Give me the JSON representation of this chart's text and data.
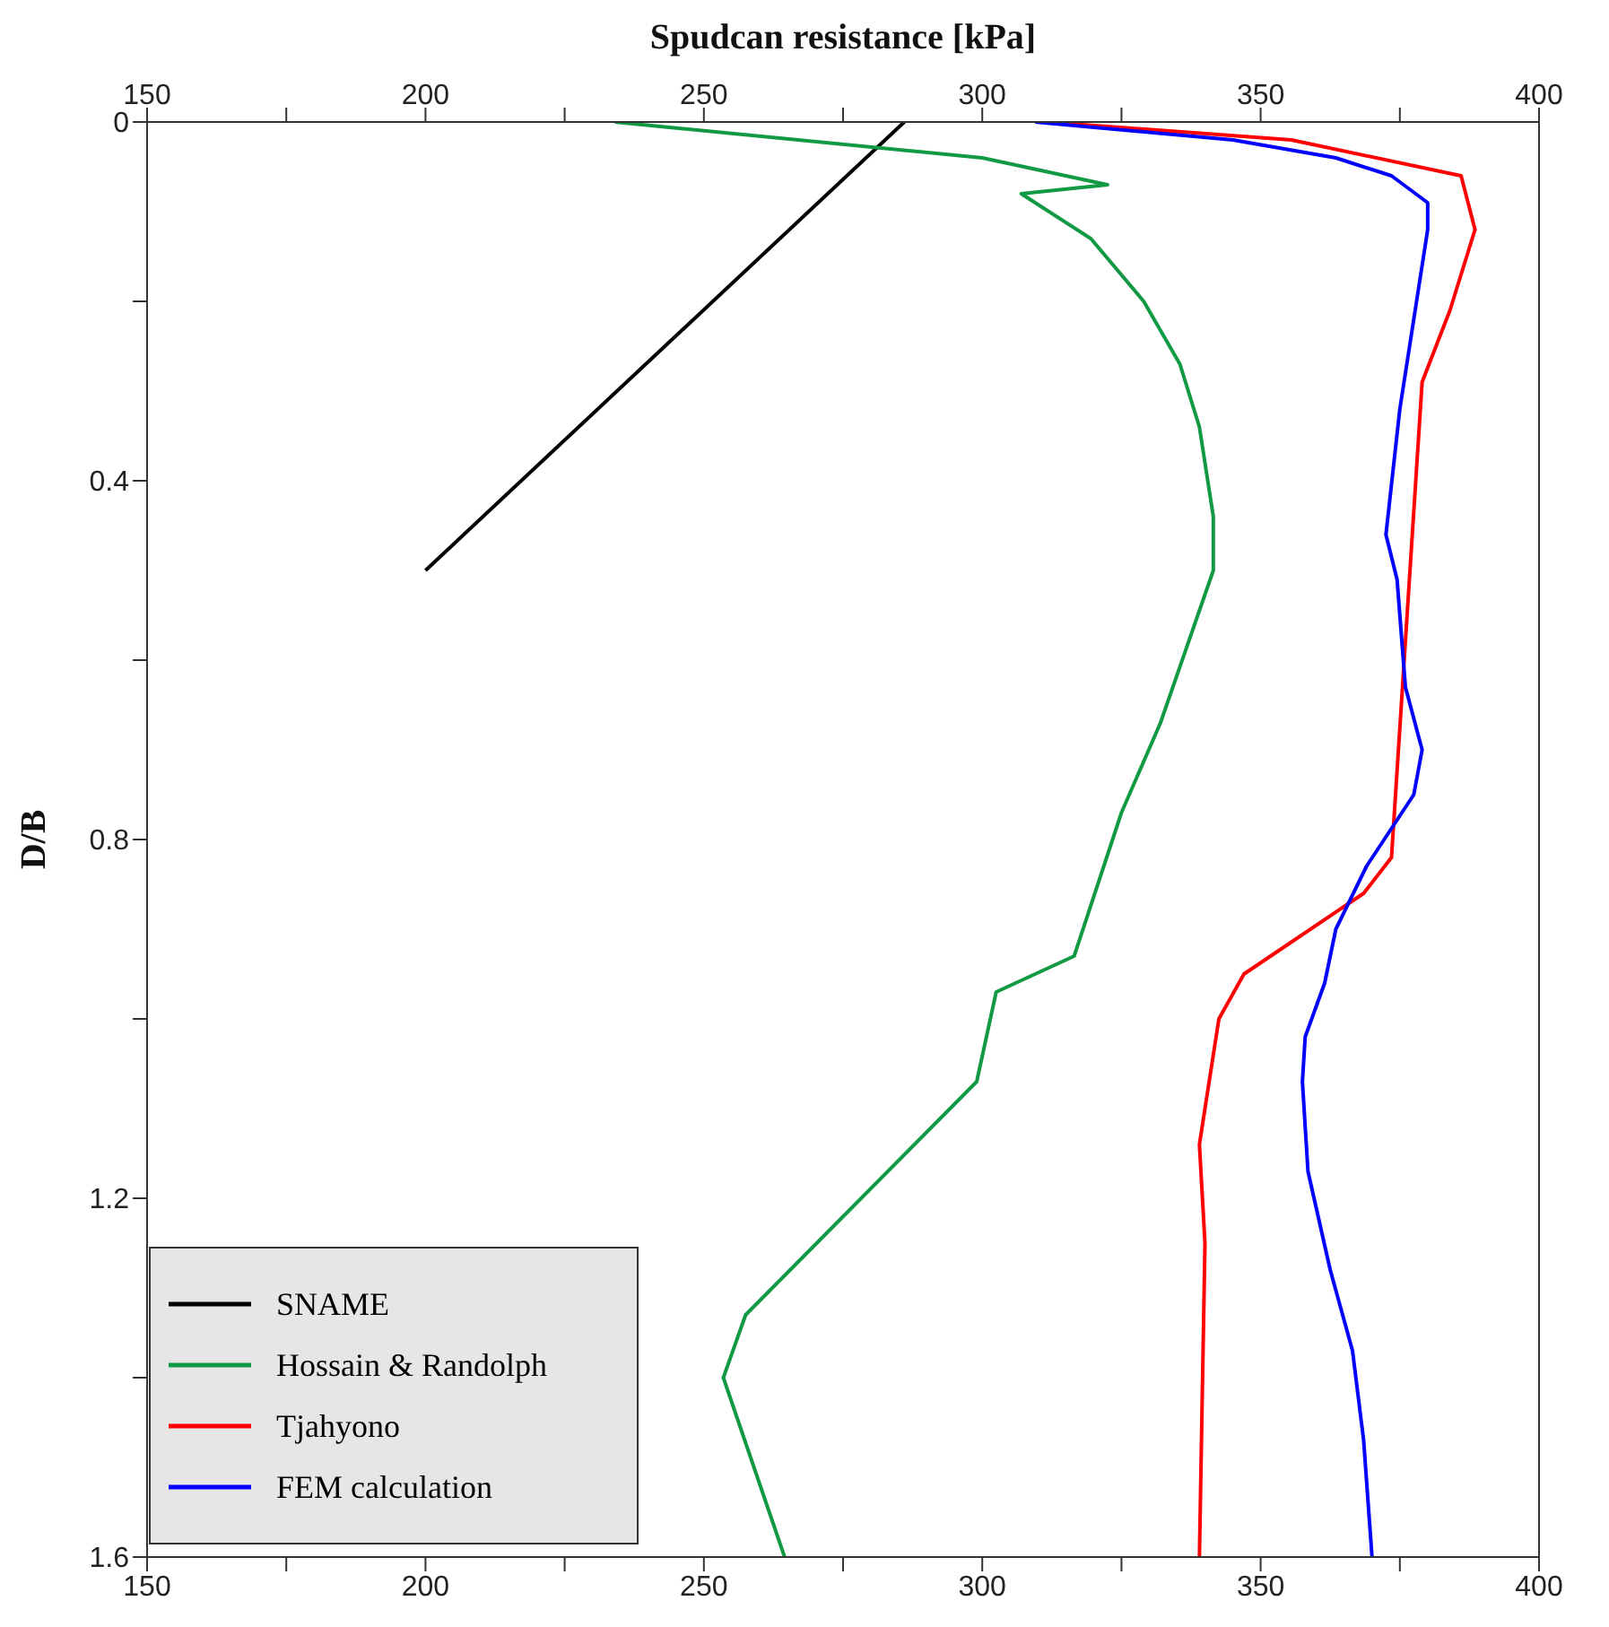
{
  "chart_data": {
    "type": "line",
    "x2label": "Spudcan resistance [kPa]",
    "ylabel": "D/B",
    "xlim": [
      150,
      400
    ],
    "xticks": [
      150,
      {
        "value": 175,
        "label": null
      },
      200,
      {
        "value": 225,
        "label": null
      },
      250,
      {
        "value": 275,
        "label": null
      },
      300,
      {
        "value": 325,
        "label": null
      },
      350,
      {
        "value": 375,
        "label": null
      },
      400
    ],
    "x2lim": [
      150,
      400
    ],
    "x2ticks": [
      150,
      {
        "value": 175,
        "label": null
      },
      200,
      {
        "value": 225,
        "label": null
      },
      250,
      {
        "value": 275,
        "label": null
      },
      300,
      {
        "value": 325,
        "label": null
      },
      350,
      {
        "value": 375,
        "label": null
      },
      400
    ],
    "ylim": [
      1.6,
      0
    ],
    "yticks": [
      0,
      {
        "value": 0.2,
        "label": null
      },
      0.4,
      {
        "value": 0.6,
        "label": null
      },
      0.8,
      {
        "value": 1.0,
        "label": null
      },
      1.2,
      {
        "value": 1.4,
        "label": null
      },
      1.6
    ],
    "legend": "bottom left",
    "marker": "none",
    "line_style": "solid",
    "series": [
      {
        "name": "SNAME",
        "color": "#000000",
        "x": [
          286,
          200
        ],
        "values": [
          0,
          0.5
        ]
      },
      {
        "name": "Hossain & Randolph",
        "color": "#119944",
        "x": [
          234,
          300,
          322.5,
          307,
          319.5,
          329,
          335.5,
          339,
          341.5,
          341.5,
          332,
          325,
          316.5,
          302.5,
          299,
          257.5,
          253.5,
          264.5
        ],
        "values": [
          0,
          0.04,
          0.07,
          0.08,
          0.13,
          0.2,
          0.27,
          0.34,
          0.44,
          0.5,
          0.67,
          0.77,
          0.93,
          0.97,
          1.07,
          1.33,
          1.4,
          1.6
        ]
      },
      {
        "name": "Tjahyono",
        "color": "#ff0000",
        "x": [
          311.5,
          355.5,
          386,
          388.5,
          384,
          379,
          373.5,
          368.5,
          347,
          342.5,
          339,
          340,
          339
        ],
        "values": [
          0,
          0.02,
          0.06,
          0.12,
          0.21,
          0.29,
          0.82,
          0.86,
          0.95,
          1.0,
          1.14,
          1.25,
          1.6
        ]
      },
      {
        "name": "FEM calculation",
        "color": "#0000ff",
        "x": [
          309.5,
          345,
          363.5,
          373.5,
          380,
          380,
          375,
          372.5,
          374.5,
          376,
          379,
          377.5,
          369,
          363.5,
          361.5,
          358,
          357.5,
          358.5,
          362.5,
          366.5,
          368.5,
          370
        ],
        "values": [
          0,
          0.02,
          0.04,
          0.06,
          0.09,
          0.12,
          0.32,
          0.46,
          0.51,
          0.63,
          0.7,
          0.75,
          0.83,
          0.9,
          0.96,
          1.02,
          1.07,
          1.17,
          1.28,
          1.37,
          1.47,
          1.6
        ]
      }
    ]
  }
}
